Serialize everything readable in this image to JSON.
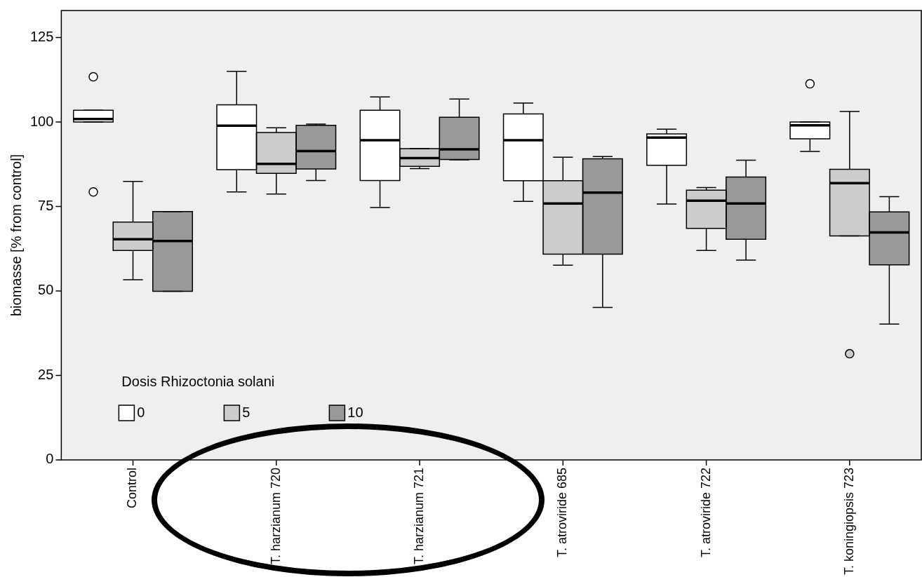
{
  "chart_data": {
    "type": "box",
    "ylabel": "biomasse [% from control]",
    "legend_title": "Dosis Rhizoctonia solani",
    "legend": "bottom left",
    "grid": false,
    "marker": "circle",
    "categories": [
      "Control",
      "T. harzianum 720",
      "T. harzianum 721",
      "T. atroviride 685",
      "T. atroviride 722",
      "T. koningiopsis 723"
    ],
    "ylim": [
      0,
      133
    ],
    "yticks": [
      0,
      25,
      50,
      75,
      100,
      125
    ],
    "series": [
      {
        "name": "0",
        "color": "#ffffff",
        "boxes": [
          {
            "low": 100.0,
            "q1": 100.0,
            "median": 100.9,
            "q3": 103.5,
            "high": 103.5,
            "outliers": [
              113.4,
              79.3
            ]
          },
          {
            "low": 79.3,
            "q1": 85.9,
            "median": 98.9,
            "q3": 105.1,
            "high": 115.0
          },
          {
            "low": 74.7,
            "q1": 82.7,
            "median": 94.6,
            "q3": 103.5,
            "high": 107.4
          },
          {
            "low": 76.5,
            "q1": 82.6,
            "median": 94.6,
            "q3": 102.4,
            "high": 105.6
          },
          {
            "low": 75.7,
            "q1": 87.2,
            "median": 95.4,
            "q3": 96.5,
            "high": 97.9
          },
          {
            "low": 91.3,
            "q1": 95.0,
            "median": 99.0,
            "q3": 100.0,
            "high": 100.0,
            "outliers": [
              111.3
            ]
          }
        ]
      },
      {
        "name": "5",
        "color": "#cccccc",
        "boxes": [
          {
            "low": 53.3,
            "q1": 62.0,
            "median": 65.3,
            "q3": 70.4,
            "high": 82.4
          },
          {
            "low": 78.7,
            "q1": 84.8,
            "median": 87.6,
            "q3": 96.9,
            "high": 98.3
          },
          {
            "low": 86.2,
            "q1": 86.9,
            "median": 89.3,
            "q3": 92.1,
            "high": 92.1
          },
          {
            "low": 57.6,
            "q1": 60.9,
            "median": 75.9,
            "q3": 82.6,
            "high": 89.6
          },
          {
            "low": 62.0,
            "q1": 68.5,
            "median": 76.7,
            "q3": 79.8,
            "high": 80.6
          },
          {
            "low": 66.3,
            "q1": 66.3,
            "median": 81.9,
            "q3": 86.0,
            "high": 103.1,
            "outliers": [
              31.4
            ]
          }
        ]
      },
      {
        "name": "10",
        "color": "#999999",
        "boxes": [
          {
            "low": 49.9,
            "q1": 49.9,
            "median": 64.8,
            "q3": 73.5,
            "high": 73.5
          },
          {
            "low": 82.7,
            "q1": 86.1,
            "median": 91.4,
            "q3": 99.0,
            "high": 99.4
          },
          {
            "low": 88.8,
            "q1": 88.9,
            "median": 91.9,
            "q3": 101.4,
            "high": 106.8
          },
          {
            "low": 45.1,
            "q1": 60.9,
            "median": 79.1,
            "q3": 89.1,
            "high": 89.8
          },
          {
            "low": 59.1,
            "q1": 65.3,
            "median": 75.9,
            "q3": 83.7,
            "high": 88.7
          },
          {
            "low": 40.2,
            "q1": 57.7,
            "median": 67.3,
            "q3": 73.4,
            "high": 77.9
          }
        ]
      }
    ]
  }
}
